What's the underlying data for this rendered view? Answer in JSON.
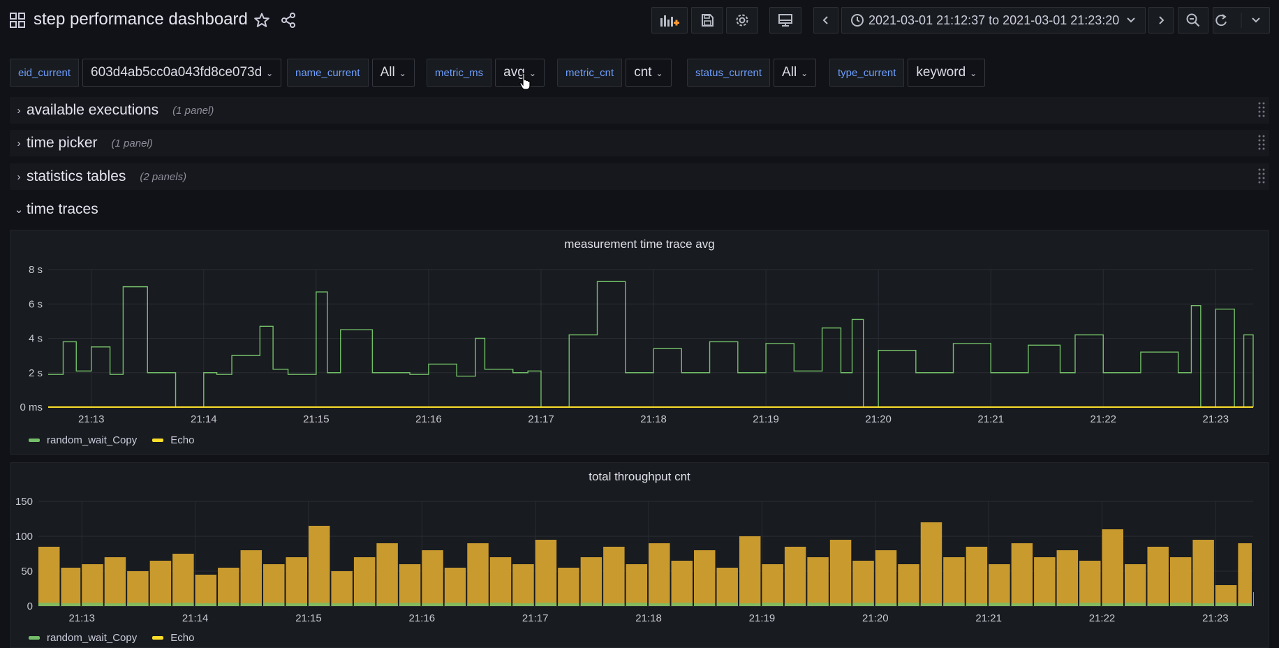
{
  "header": {
    "title": "step performance dashboard",
    "time_range": "2021-03-01 21:12:37 to 2021-03-01 21:23:20",
    "icons": [
      "grid-icon",
      "star-icon",
      "share-icon",
      "add-panel-icon",
      "save-icon",
      "gear-icon",
      "tv-icon",
      "chevron-left-icon",
      "clock-icon",
      "chevron-down-icon",
      "chevron-right-icon",
      "zoom-out-icon",
      "refresh-icon"
    ]
  },
  "variables": [
    {
      "label": "eid_current",
      "value": "603d4ab5cc0a043fd8ce073d"
    },
    {
      "label": "name_current",
      "value": "All"
    },
    {
      "label": "metric_ms",
      "value": "avg"
    },
    {
      "label": "metric_cnt",
      "value": "cnt"
    },
    {
      "label": "status_current",
      "value": "All"
    },
    {
      "label": "type_current",
      "value": "keyword"
    }
  ],
  "rows": [
    {
      "title": "available executions",
      "count": "(1 panel)",
      "collapsed": true
    },
    {
      "title": "time picker",
      "count": "(1 panel)",
      "collapsed": true
    },
    {
      "title": "statistics tables",
      "count": "(2 panels)",
      "collapsed": true
    },
    {
      "title": "time traces",
      "count": "",
      "collapsed": false
    }
  ],
  "colors": {
    "green": "#73bf69",
    "yellow": "#fade2a",
    "echo_fill": "#c99a2e",
    "accent_blue": "#6e9fff"
  },
  "panels": [
    {
      "title": "measurement time trace avg",
      "legend": [
        {
          "name": "random_wait_Copy",
          "color": "#73bf69"
        },
        {
          "name": "Echo",
          "color": "#fade2a"
        }
      ]
    },
    {
      "title": "total throughput cnt",
      "legend": [
        {
          "name": "random_wait_Copy",
          "color": "#73bf69"
        },
        {
          "name": "Echo",
          "color": "#fade2a"
        }
      ]
    }
  ],
  "chart_data": [
    {
      "type": "line",
      "title": "measurement time trace avg",
      "y_ticks": [
        "0 ms",
        "2 s",
        "4 s",
        "6 s",
        "8 s"
      ],
      "x_ticks": [
        "21:13",
        "21:14",
        "21:15",
        "21:16",
        "21:17",
        "21:18",
        "21:19",
        "21:20",
        "21:21",
        "21:22",
        "21:23"
      ],
      "ylim": [
        0,
        8
      ],
      "x": [
        "21:12:37",
        "21:12:45",
        "21:12:52",
        "21:13:00",
        "21:13:10",
        "21:13:17",
        "21:13:30",
        "21:13:45",
        "21:14:00",
        "21:14:07",
        "21:14:15",
        "21:14:30",
        "21:14:37",
        "21:14:45",
        "21:15:00",
        "21:15:06",
        "21:15:13",
        "21:15:30",
        "21:15:50",
        "21:16:00",
        "21:16:15",
        "21:16:25",
        "21:16:30",
        "21:16:45",
        "21:16:53",
        "21:17:00",
        "21:17:15",
        "21:17:30",
        "21:17:45",
        "21:18:00",
        "21:18:15",
        "21:18:30",
        "21:18:45",
        "21:19:00",
        "21:19:15",
        "21:19:30",
        "21:19:40",
        "21:19:46",
        "21:19:52",
        "21:20:00",
        "21:20:20",
        "21:20:40",
        "21:21:00",
        "21:21:20",
        "21:21:37",
        "21:21:45",
        "21:22:00",
        "21:22:20",
        "21:22:40",
        "21:22:47",
        "21:22:52",
        "21:23:00",
        "21:23:10",
        "21:23:15",
        "21:23:20"
      ],
      "series": [
        {
          "name": "random_wait_Copy",
          "values": [
            1.9,
            3.8,
            2.1,
            3.5,
            1.9,
            7.0,
            2.0,
            0.0,
            2.0,
            1.9,
            3.0,
            4.7,
            2.2,
            1.9,
            6.7,
            2.0,
            4.5,
            2.0,
            1.9,
            2.5,
            1.8,
            4.0,
            2.2,
            2.0,
            2.1,
            0.0,
            4.2,
            7.3,
            2.0,
            3.4,
            2.0,
            3.8,
            2.0,
            3.7,
            2.1,
            4.6,
            2.0,
            5.1,
            0.0,
            3.3,
            2.0,
            3.7,
            2.0,
            3.6,
            2.0,
            4.2,
            2.0,
            3.2,
            2.0,
            5.9,
            0.0,
            5.7,
            0.0,
            4.2,
            0.0
          ]
        },
        {
          "name": "Echo",
          "values": [
            0,
            0,
            0,
            0,
            0,
            0,
            0,
            0,
            0,
            0,
            0,
            0,
            0,
            0,
            0,
            0,
            0,
            0,
            0,
            0,
            0,
            0,
            0,
            0,
            0,
            0,
            0,
            0,
            0,
            0,
            0,
            0,
            0,
            0,
            0,
            0,
            0,
            0,
            0,
            0,
            0,
            0,
            0,
            0,
            0,
            0,
            0,
            0,
            0,
            0,
            0,
            0,
            0,
            0,
            0
          ]
        }
      ]
    },
    {
      "type": "bar",
      "title": "total throughput cnt",
      "y_ticks": [
        "0",
        "50",
        "100",
        "150"
      ],
      "x_ticks": [
        "21:13",
        "21:14",
        "21:15",
        "21:16",
        "21:17",
        "21:18",
        "21:19",
        "21:20",
        "21:21",
        "21:22",
        "21:23"
      ],
      "ylim": [
        0,
        150
      ],
      "x": [
        "21:12:37",
        "21:12:49",
        "21:13:00",
        "21:13:12",
        "21:13:24",
        "21:13:36",
        "21:13:48",
        "21:14:00",
        "21:14:12",
        "21:14:24",
        "21:14:36",
        "21:14:48",
        "21:15:00",
        "21:15:12",
        "21:15:24",
        "21:15:36",
        "21:15:48",
        "21:16:00",
        "21:16:12",
        "21:16:24",
        "21:16:36",
        "21:16:48",
        "21:17:00",
        "21:17:12",
        "21:17:24",
        "21:17:36",
        "21:17:48",
        "21:18:00",
        "21:18:12",
        "21:18:24",
        "21:18:36",
        "21:18:48",
        "21:19:00",
        "21:19:12",
        "21:19:24",
        "21:19:36",
        "21:19:48",
        "21:20:00",
        "21:20:12",
        "21:20:24",
        "21:20:36",
        "21:20:48",
        "21:21:00",
        "21:21:12",
        "21:21:24",
        "21:21:36",
        "21:21:48",
        "21:22:00",
        "21:22:12",
        "21:22:24",
        "21:22:36",
        "21:22:48",
        "21:23:00",
        "21:23:12",
        "21:23:20"
      ],
      "series": [
        {
          "name": "Echo",
          "values": [
            85,
            55,
            60,
            70,
            50,
            65,
            75,
            45,
            55,
            80,
            60,
            70,
            115,
            50,
            70,
            90,
            60,
            80,
            55,
            90,
            70,
            60,
            95,
            55,
            70,
            85,
            60,
            90,
            65,
            80,
            55,
            100,
            60,
            85,
            70,
            95,
            65,
            80,
            60,
            120,
            70,
            85,
            60,
            90,
            70,
            80,
            65,
            110,
            60,
            85,
            70,
            95,
            30,
            90,
            20
          ]
        },
        {
          "name": "random_wait_Copy",
          "values": [
            5,
            4,
            5,
            4,
            5,
            4,
            5,
            4,
            5,
            4,
            5,
            4,
            5,
            4,
            5,
            4,
            5,
            4,
            5,
            4,
            5,
            4,
            5,
            4,
            5,
            4,
            5,
            4,
            5,
            4,
            5,
            4,
            5,
            4,
            5,
            4,
            5,
            4,
            5,
            4,
            5,
            4,
            5,
            4,
            5,
            4,
            5,
            4,
            5,
            4,
            5,
            4,
            5,
            4,
            4
          ]
        }
      ]
    }
  ]
}
